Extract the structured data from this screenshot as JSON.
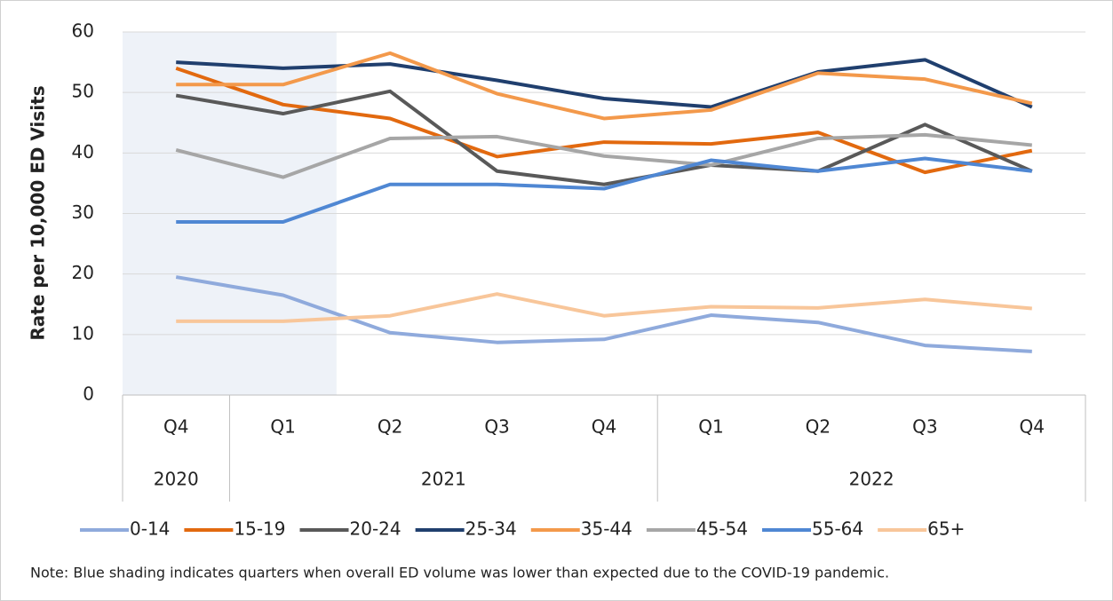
{
  "chart_data": {
    "type": "line",
    "y_label": "Rate per 10,000 ED Visits",
    "categories": [
      "Q4",
      "Q1",
      "Q2",
      "Q3",
      "Q4",
      "Q1",
      "Q2",
      "Q3",
      "Q4"
    ],
    "groups": [
      {
        "label": "2020",
        "count": 1
      },
      {
        "label": "2021",
        "count": 4
      },
      {
        "label": "2022",
        "count": 4
      }
    ],
    "shaded": [
      0,
      1
    ],
    "shade_color": "#eef2f8",
    "series": [
      {
        "name": "0-14",
        "color": "#8faadc",
        "values": [
          19.5,
          16.5,
          10.3,
          8.7,
          9.2,
          13.2,
          12.0,
          8.2,
          7.2
        ]
      },
      {
        "name": "15-19",
        "color": "#e2690f",
        "values": [
          54.0,
          48.0,
          45.7,
          39.4,
          41.8,
          41.5,
          43.4,
          36.8,
          40.4
        ]
      },
      {
        "name": "20-24",
        "color": "#595959",
        "values": [
          49.5,
          46.5,
          50.2,
          37.0,
          34.8,
          38.0,
          37.0,
          44.7,
          37.0
        ]
      },
      {
        "name": "25-34",
        "color": "#203f6e",
        "values": [
          55.0,
          54.0,
          54.7,
          52.0,
          49.0,
          47.6,
          53.4,
          55.4,
          47.6
        ]
      },
      {
        "name": "35-44",
        "color": "#f3994b",
        "values": [
          51.3,
          51.3,
          56.5,
          49.8,
          45.7,
          47.1,
          53.2,
          52.2,
          48.2
        ]
      },
      {
        "name": "45-54",
        "color": "#a6a6a6",
        "values": [
          40.5,
          36.0,
          42.4,
          42.7,
          39.5,
          38.0,
          42.4,
          43.0,
          41.3
        ]
      },
      {
        "name": "55-64",
        "color": "#4f87d3",
        "values": [
          28.6,
          28.6,
          34.8,
          34.8,
          34.1,
          38.8,
          37.0,
          39.1,
          37.0
        ]
      },
      {
        "name": "65+",
        "color": "#f8c69a",
        "values": [
          12.2,
          12.2,
          13.1,
          16.7,
          13.1,
          14.6,
          14.4,
          15.8,
          14.3
        ]
      }
    ],
    "ylim": [
      0,
      60
    ],
    "yticks": [
      0,
      10,
      20,
      30,
      40,
      50,
      60
    ],
    "grid": true,
    "note": "Note: Blue shading indicates quarters when overall ED volume was lower than expected due to the COVID-19 pandemic."
  }
}
